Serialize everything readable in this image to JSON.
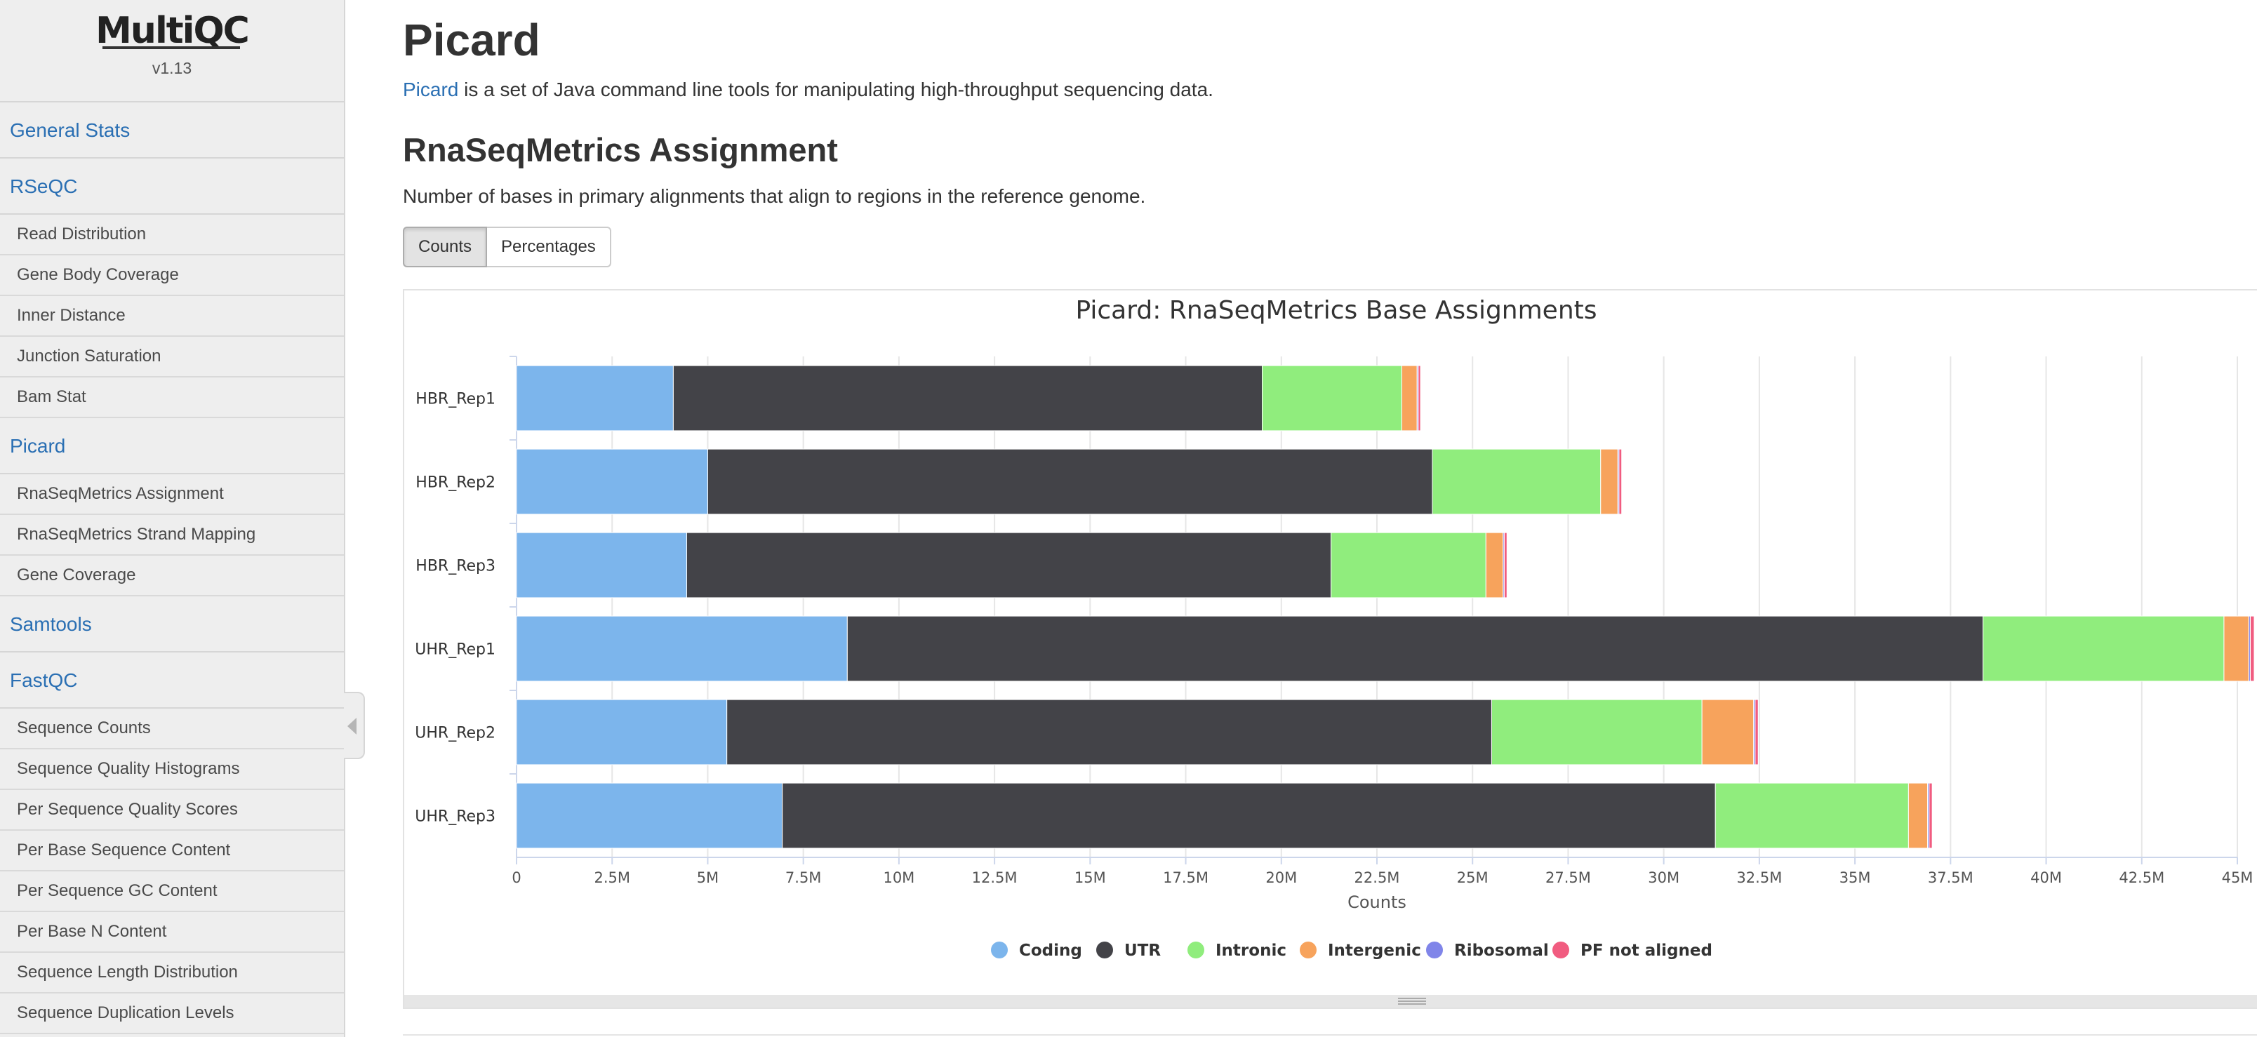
{
  "sidebar": {
    "logo": "MultiQC",
    "version": "v1.13",
    "nav": [
      {
        "label": "General Stats",
        "type": "section"
      },
      {
        "label": "RSeQC",
        "type": "section"
      },
      {
        "label": "Read Distribution",
        "type": "item"
      },
      {
        "label": "Gene Body Coverage",
        "type": "item"
      },
      {
        "label": "Inner Distance",
        "type": "item"
      },
      {
        "label": "Junction Saturation",
        "type": "item"
      },
      {
        "label": "Bam Stat",
        "type": "item"
      },
      {
        "label": "Picard",
        "type": "section"
      },
      {
        "label": "RnaSeqMetrics Assignment",
        "type": "item"
      },
      {
        "label": "RnaSeqMetrics Strand Mapping",
        "type": "item"
      },
      {
        "label": "Gene Coverage",
        "type": "item"
      },
      {
        "label": "Samtools",
        "type": "section"
      },
      {
        "label": "FastQC",
        "type": "section"
      },
      {
        "label": "Sequence Counts",
        "type": "item"
      },
      {
        "label": "Sequence Quality Histograms",
        "type": "item"
      },
      {
        "label": "Per Sequence Quality Scores",
        "type": "item"
      },
      {
        "label": "Per Base Sequence Content",
        "type": "item"
      },
      {
        "label": "Per Sequence GC Content",
        "type": "item"
      },
      {
        "label": "Per Base N Content",
        "type": "item"
      },
      {
        "label": "Sequence Length Distribution",
        "type": "item"
      },
      {
        "label": "Sequence Duplication Levels",
        "type": "item"
      }
    ]
  },
  "main": {
    "title": "Picard",
    "intro_link": "Picard",
    "intro_text": " is a set of Java command line tools for manipulating high-throughput sequencing data.",
    "section_title": "RnaSeqMetrics Assignment",
    "section_desc": "Number of bases in primary alignments that align to regions in the reference genome.",
    "buttons": {
      "counts": "Counts",
      "percentages": "Percentages"
    }
  },
  "chart_data": {
    "type": "bar",
    "orientation": "horizontal",
    "stacked": true,
    "title": "Picard: RnaSeqMetrics Base Assignments",
    "xlabel": "Counts",
    "ylabel": "",
    "xlim": [
      0,
      45000000
    ],
    "tick_values": [
      0,
      2500000,
      5000000,
      7500000,
      10000000,
      12500000,
      15000000,
      17500000,
      20000000,
      22500000,
      25000000,
      27500000,
      30000000,
      32500000,
      35000000,
      37500000,
      40000000,
      42500000,
      45000000
    ],
    "tick_labels": [
      "0",
      "2.5M",
      "5M",
      "7.5M",
      "10M",
      "12.5M",
      "15M",
      "17.5M",
      "20M",
      "22.5M",
      "25M",
      "27.5M",
      "30M",
      "32.5M",
      "35M",
      "37.5M",
      "40M",
      "42.5M",
      "45M"
    ],
    "categories": [
      "HBR_Rep1",
      "HBR_Rep2",
      "HBR_Rep3",
      "UHR_Rep1",
      "UHR_Rep2",
      "UHR_Rep3"
    ],
    "series": [
      {
        "name": "Coding",
        "color": "#7cb5ec",
        "values": [
          4100000,
          5000000,
          4450000,
          8650000,
          5500000,
          6950000
        ]
      },
      {
        "name": "UTR",
        "color": "#434348",
        "values": [
          15400000,
          18950000,
          16850000,
          29700000,
          20000000,
          24400000
        ]
      },
      {
        "name": "Intronic",
        "color": "#90ed7d",
        "values": [
          3650000,
          4400000,
          4050000,
          6300000,
          5500000,
          5050000
        ]
      },
      {
        "name": "Intergenic",
        "color": "#f7a35c",
        "values": [
          400000,
          450000,
          450000,
          650000,
          1350000,
          500000
        ]
      },
      {
        "name": "Ribosomal",
        "color": "#8085e9",
        "values": [
          30000,
          30000,
          30000,
          40000,
          40000,
          40000
        ]
      },
      {
        "name": "PF not aligned",
        "color": "#f15c80",
        "values": [
          60000,
          70000,
          70000,
          100000,
          80000,
          80000
        ]
      }
    ]
  }
}
